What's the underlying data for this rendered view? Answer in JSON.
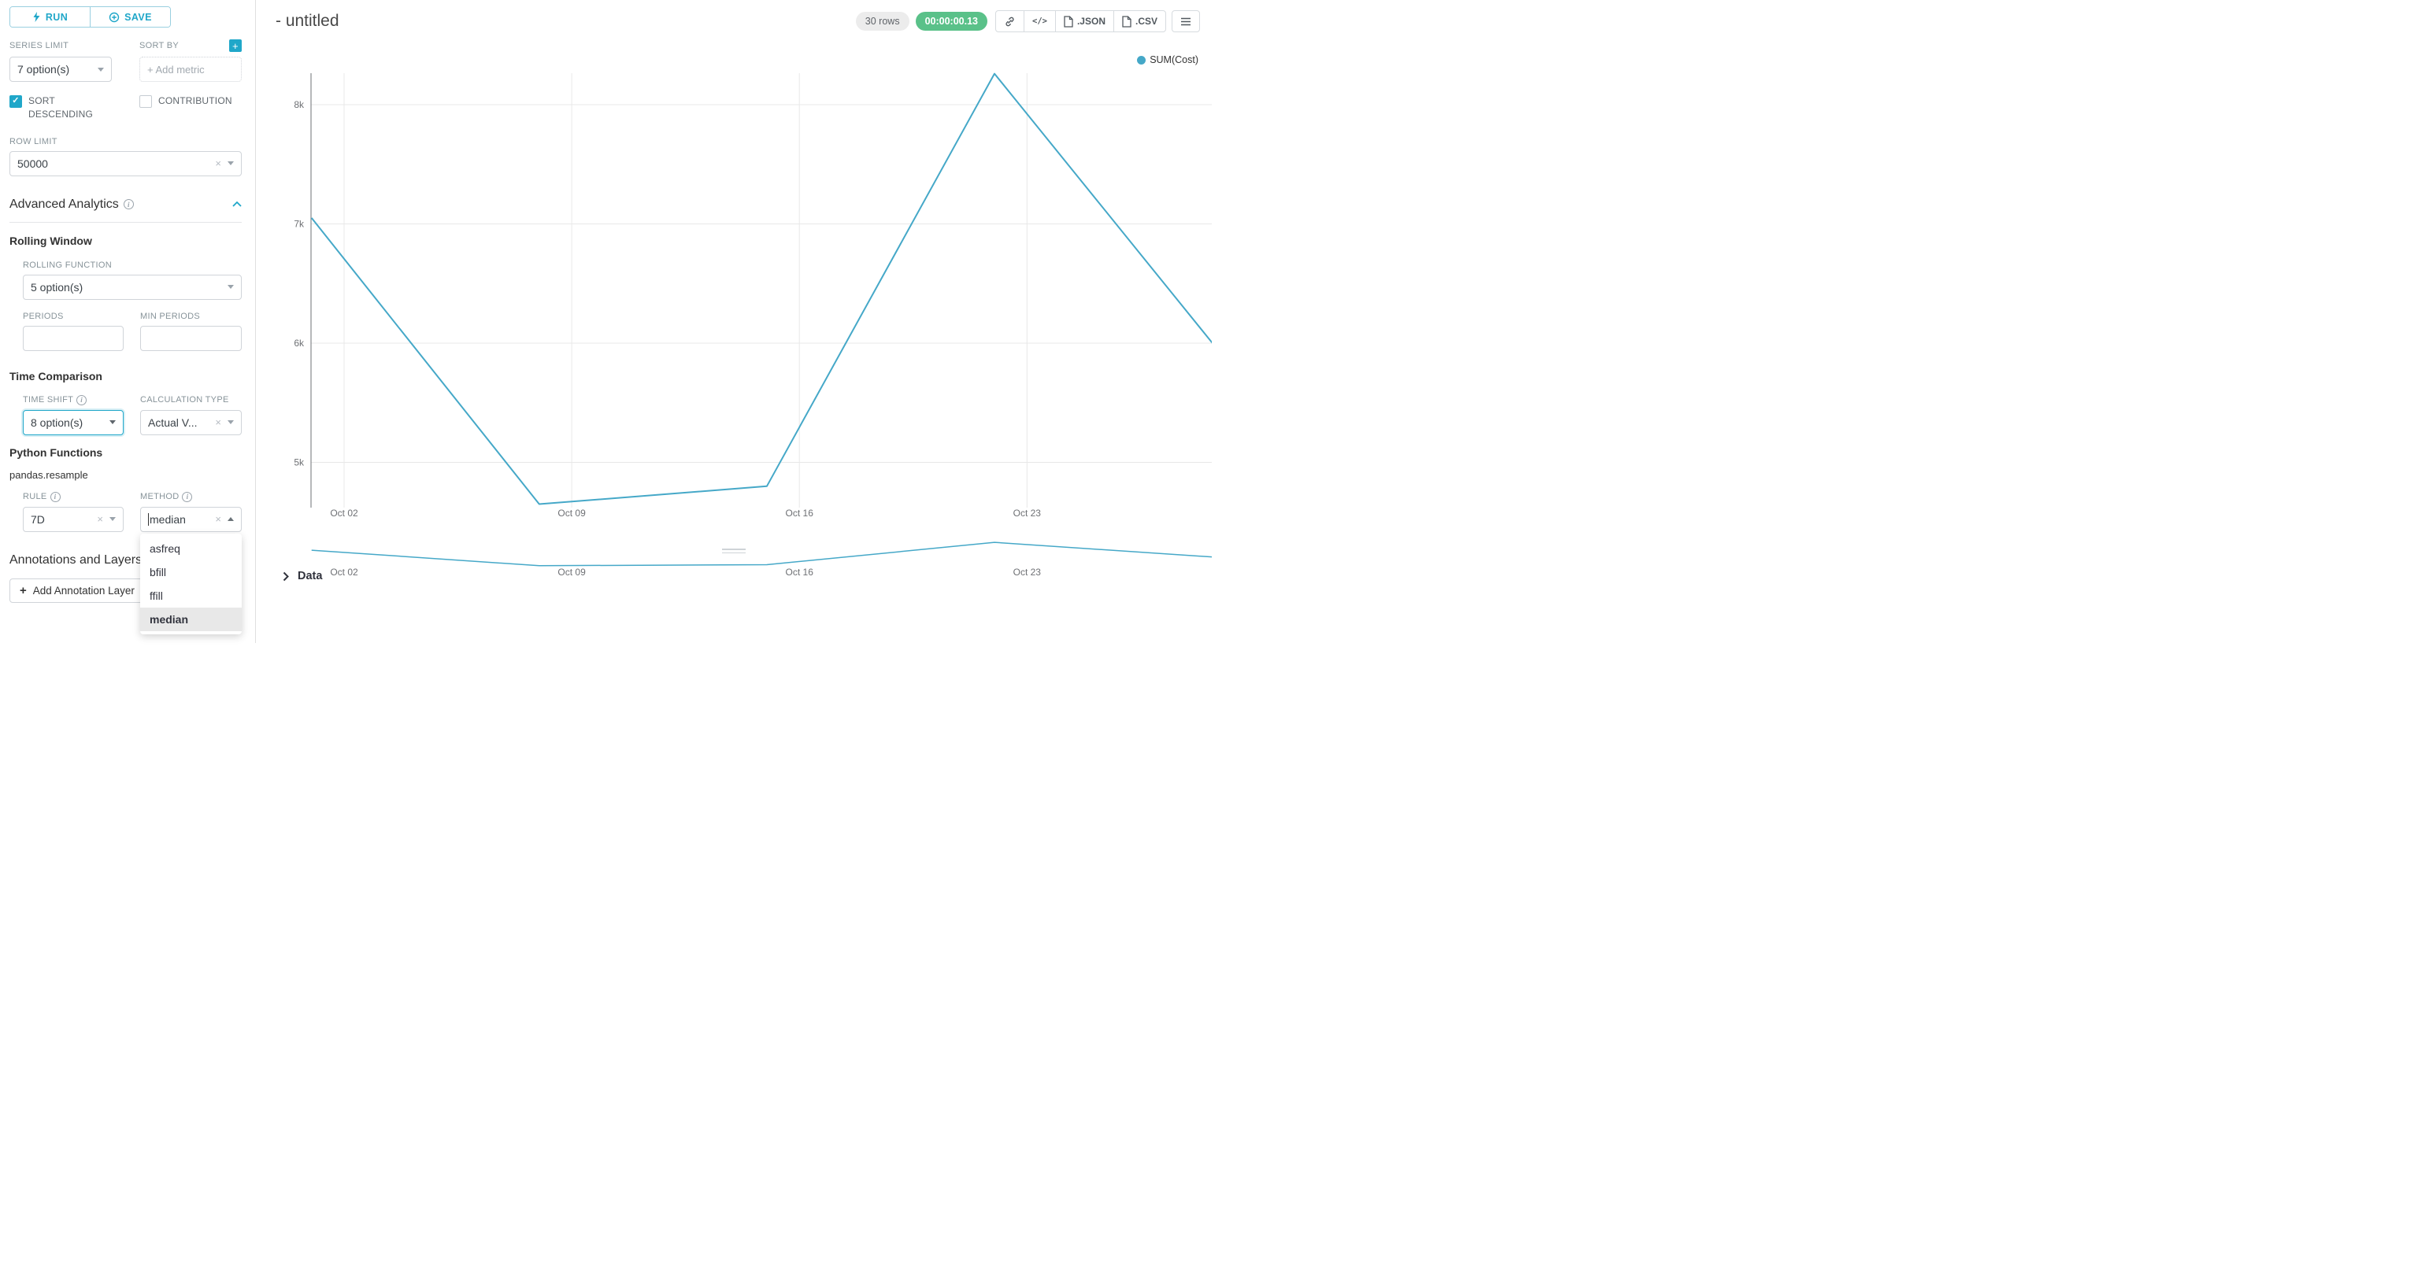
{
  "colors": {
    "accent": "#20a7c9",
    "green": "#5ac189",
    "line": "#45a8c8",
    "grid": "#e8e8e8",
    "axis": "#6e7074"
  },
  "icons": {
    "plus": "+",
    "close": "×",
    "check": "✓",
    "menu_note": "hamburger-icon",
    "code": "</>"
  },
  "sidebar": {
    "run_label": "RUN",
    "save_label": "SAVE",
    "series_limit": {
      "label": "SERIES LIMIT",
      "value": "7 option(s)"
    },
    "sort_by": {
      "label": "SORT BY",
      "placeholder": "+ Add metric"
    },
    "sort_descending": {
      "label": "SORT DESCENDING",
      "checked": true
    },
    "contribution": {
      "label": "CONTRIBUTION",
      "checked": false
    },
    "row_limit": {
      "label": "ROW LIMIT",
      "value": "50000"
    },
    "advanced_analytics_title": "Advanced Analytics",
    "rolling_window": {
      "title": "Rolling Window",
      "rolling_function": {
        "label": "ROLLING FUNCTION",
        "value": "5 option(s)"
      },
      "periods_label": "PERIODS",
      "min_periods_label": "MIN PERIODS"
    },
    "time_comparison": {
      "title": "Time Comparison",
      "time_shift": {
        "label": "TIME SHIFT",
        "value": "8 option(s)"
      },
      "calculation_type": {
        "label": "CALCULATION TYPE",
        "value": "Actual V..."
      }
    },
    "python_functions": {
      "title": "Python Functions",
      "subtitle": "pandas.resample",
      "rule": {
        "label": "RULE",
        "value": "7D"
      },
      "method": {
        "label": "METHOD",
        "value": "median",
        "options": [
          "asfreq",
          "bfill",
          "ffill",
          "median"
        ],
        "selected": "median"
      }
    },
    "annotations": {
      "title": "Annotations and Layers",
      "add_button_label": "Add Annotation Layer"
    }
  },
  "header": {
    "title": "- untitled",
    "rows_badge": "30 rows",
    "timer_badge": "00:00:00.13",
    "json_label": ".JSON",
    "csv_label": ".CSV"
  },
  "chart_data": {
    "type": "line",
    "title": "",
    "legend": [
      "SUM(Cost)"
    ],
    "legend_position": "top-right",
    "grid": true,
    "x_unit": "days",
    "series": [
      {
        "name": "SUM(Cost)",
        "x_days": [
          0,
          7,
          14,
          21,
          28
        ],
        "values": [
          7050,
          4650,
          4800,
          8260,
          5900
        ]
      }
    ],
    "x_ticks": [
      {
        "day": 1,
        "label": "Oct 02"
      },
      {
        "day": 8,
        "label": "Oct 09"
      },
      {
        "day": 15,
        "label": "Oct 16"
      },
      {
        "day": 22,
        "label": "Oct 23"
      }
    ],
    "y_ticks": [
      {
        "value": 8000,
        "label": "8k"
      },
      {
        "value": 7000,
        "label": "7k"
      },
      {
        "value": 6000,
        "label": "6k"
      },
      {
        "value": 5000,
        "label": "5k"
      }
    ],
    "ylim": [
      4500,
      8400
    ],
    "mini_chart": {
      "present": true,
      "same_series": true
    }
  },
  "data_panel": {
    "label": "Data"
  }
}
